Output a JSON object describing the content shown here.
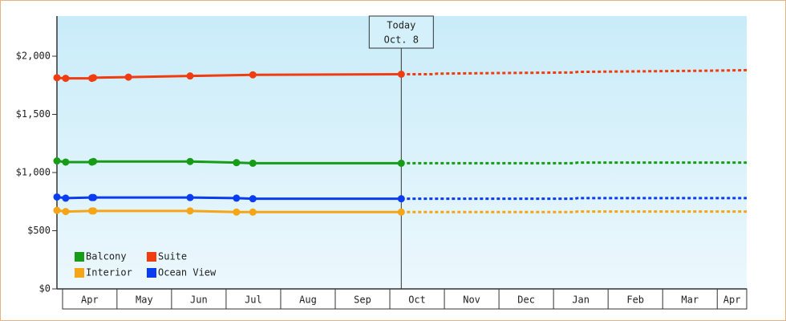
{
  "chart_data": {
    "type": "line",
    "xlim": [
      -0.1,
      12.54
    ],
    "ylim": [
      0,
      2345
    ],
    "xticks": [
      {
        "value": 0.5,
        "label": "Apr"
      },
      {
        "value": 1.5,
        "label": "May"
      },
      {
        "value": 2.5,
        "label": "Jun"
      },
      {
        "value": 3.5,
        "label": "Jul"
      },
      {
        "value": 4.5,
        "label": "Aug"
      },
      {
        "value": 5.5,
        "label": "Sep"
      },
      {
        "value": 6.5,
        "label": "Oct"
      },
      {
        "value": 7.5,
        "label": "Nov"
      },
      {
        "value": 8.5,
        "label": "Dec"
      },
      {
        "value": 9.5,
        "label": "Jan"
      },
      {
        "value": 10.5,
        "label": "Feb"
      },
      {
        "value": 11.5,
        "label": "Mar"
      },
      {
        "value": 12.27,
        "label": "Apr"
      }
    ],
    "yticks": [
      {
        "value": 0,
        "label": "$0"
      },
      {
        "value": 500,
        "label": "$500"
      },
      {
        "value": 1000,
        "label": "$1,000"
      },
      {
        "value": 1500,
        "label": "$1,500"
      },
      {
        "value": 2000,
        "label": "$2,000"
      }
    ],
    "today": {
      "x": 6.21,
      "label": [
        "Today",
        "Oct. 8"
      ]
    },
    "series": [
      {
        "name": "Balcony",
        "color": "#169c16",
        "x": [
          -0.1,
          0.06,
          0.54,
          0.57,
          2.34,
          3.19,
          3.49,
          6.21
        ],
        "values": [
          1100,
          1090,
          1090,
          1095,
          1095,
          1085,
          1080,
          1080
        ],
        "forecast": {
          "x": [
            6.21,
            9.37,
            9.44,
            12.54
          ],
          "values": [
            1080,
            1080,
            1085,
            1085
          ]
        }
      },
      {
        "name": "Suite",
        "color": "#f03c10",
        "x": [
          -0.1,
          0.06,
          0.54,
          0.57,
          1.21,
          2.34,
          3.49,
          6.21
        ],
        "values": [
          1815,
          1810,
          1810,
          1815,
          1820,
          1830,
          1840,
          1845
        ],
        "forecast": {
          "x": [
            6.21,
            6.79,
            6.87,
            7.97,
            9.37,
            9.44,
            10.62,
            11.79,
            12.54
          ],
          "values": [
            1845,
            1845,
            1850,
            1855,
            1860,
            1865,
            1870,
            1875,
            1880
          ]
        }
      },
      {
        "name": "Interior",
        "color": "#f5a516",
        "x": [
          -0.1,
          0.06,
          0.54,
          0.57,
          2.34,
          3.19,
          3.49,
          6.21
        ],
        "values": [
          675,
          665,
          670,
          670,
          670,
          660,
          660,
          660
        ],
        "forecast": {
          "x": [
            6.21,
            9.37,
            9.44,
            12.54
          ],
          "values": [
            660,
            660,
            665,
            665
          ]
        }
      },
      {
        "name": "Ocean View",
        "color": "#0a3cf0",
        "x": [
          -0.1,
          0.06,
          0.54,
          0.57,
          2.34,
          3.19,
          3.49,
          6.21
        ],
        "values": [
          790,
          780,
          785,
          785,
          785,
          780,
          775,
          775
        ],
        "forecast": {
          "x": [
            6.21,
            9.37,
            9.44,
            12.54
          ],
          "values": [
            775,
            775,
            780,
            780
          ]
        }
      }
    ]
  }
}
